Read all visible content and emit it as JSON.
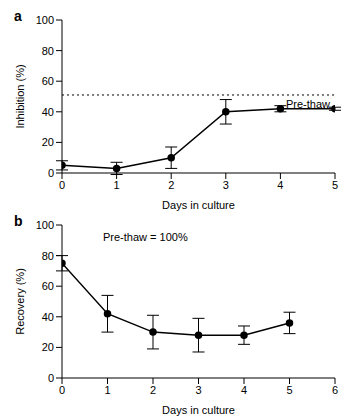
{
  "chart_data": [
    {
      "type": "line",
      "title": "a",
      "x_label": "Days in culture",
      "y_label": "Inhibition (%)",
      "x": [
        0,
        1,
        2,
        3,
        4,
        5
      ],
      "values": [
        5,
        3,
        10,
        40,
        42,
        42
      ],
      "errors": [
        3,
        4,
        7,
        8,
        2,
        1
      ],
      "color": "#000000",
      "marker": "circle",
      "xlim": [
        0,
        5
      ],
      "xticks": [
        0,
        1,
        2,
        3,
        4,
        5
      ],
      "ylim": [
        0,
        100
      ],
      "yticks": [
        0,
        20,
        40,
        60,
        80,
        100
      ],
      "grid": false,
      "reference_line": {
        "value": 51,
        "label": "Pre-thaw",
        "line_style": "dotted"
      }
    },
    {
      "type": "line",
      "title": "b",
      "x_label": "Days in culture",
      "y_label": "Recovery (%)",
      "x": [
        0,
        1,
        2,
        3,
        4,
        5
      ],
      "values": [
        75,
        42,
        30,
        28,
        28,
        36
      ],
      "errors": [
        5,
        12,
        11,
        11,
        6,
        7
      ],
      "color": "#000000",
      "marker": "circle",
      "xlim": [
        0,
        6
      ],
      "xticks": [
        0,
        1,
        2,
        3,
        4,
        5,
        6
      ],
      "ylim": [
        0,
        100
      ],
      "yticks": [
        0,
        20,
        40,
        60,
        80,
        100
      ],
      "grid": false,
      "annotations": [
        "Pre-thaw = 100%"
      ]
    }
  ]
}
